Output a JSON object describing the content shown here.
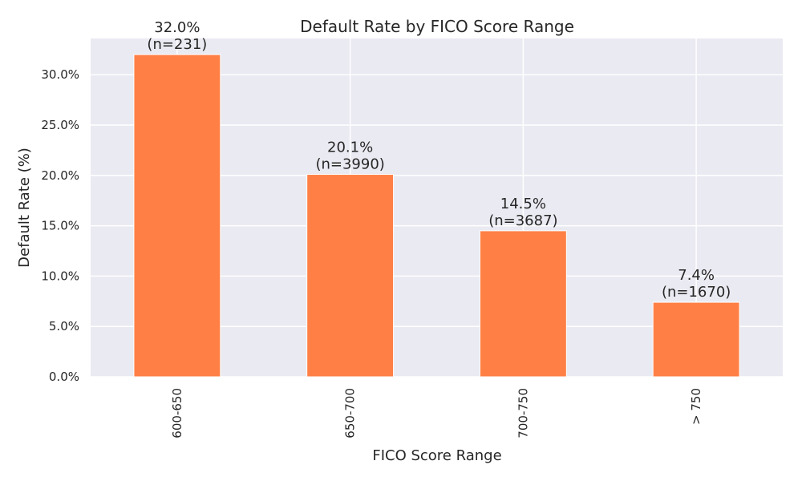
{
  "chart_data": {
    "type": "bar",
    "title": "Default Rate by FICO Score Range",
    "xlabel": "FICO Score Range",
    "ylabel": "Default Rate (%)",
    "categories": [
      "600-650",
      "650-700",
      "700-750",
      "> 750"
    ],
    "values": [
      32.0,
      20.1,
      14.5,
      7.4
    ],
    "bar_labels": [
      [
        "32.0%",
        "(n=231)"
      ],
      [
        "20.1%",
        "(n=3990)"
      ],
      [
        "14.5%",
        "(n=3687)"
      ],
      [
        "7.4%",
        "(n=1670)"
      ]
    ],
    "ylim": [
      0,
      33.6
    ],
    "yticks": [
      0,
      5,
      10,
      15,
      20,
      25,
      30
    ],
    "ytick_labels": [
      "0.0%",
      "5.0%",
      "10.0%",
      "15.0%",
      "20.0%",
      "25.0%",
      "30.0%"
    ],
    "grid": true,
    "bar_color": "#FF7F45",
    "plot_background": "#EAEAF2",
    "grid_color": "#FFFFFF"
  }
}
